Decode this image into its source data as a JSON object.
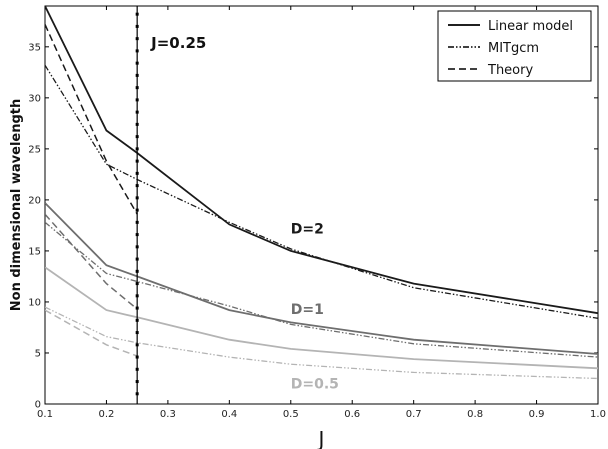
{
  "chart_data": {
    "type": "line",
    "xlabel": "J",
    "ylabel": "Non dimensional wavelength",
    "xlim": [
      0.1,
      1.0
    ],
    "ylim": [
      0,
      39
    ],
    "xticks": [
      "0.1",
      "0.2",
      "0.3",
      "0.4",
      "0.5",
      "0.6",
      "0.7",
      "0.8",
      "0.9",
      "1.0"
    ],
    "yticks": [
      "0",
      "5",
      "10",
      "15",
      "20",
      "25",
      "30",
      "35"
    ],
    "grid": false,
    "legend_position": "top-right",
    "legend": [
      {
        "label": "Linear model",
        "style": "solid"
      },
      {
        "label": "MITgcm",
        "style": "dashdotdot"
      },
      {
        "label": "Theory",
        "style": "dashed"
      }
    ],
    "vline": {
      "x": 0.25,
      "label": "J=0.25"
    },
    "groups": [
      {
        "name": "D=2",
        "color": "#1a1a1a",
        "label_pos": [
          0.5,
          17.2
        ],
        "linear": {
          "x": [
            0.1,
            0.2,
            0.25,
            0.4,
            0.5,
            0.7,
            1.0
          ],
          "y": [
            39.0,
            26.8,
            24.6,
            17.6,
            15.0,
            11.8,
            8.9
          ]
        },
        "mitgcm": {
          "x": [
            0.1,
            0.2,
            0.25,
            0.4,
            0.5,
            0.7,
            1.0
          ],
          "y": [
            33.2,
            23.5,
            22.0,
            17.8,
            15.2,
            11.4,
            8.4
          ]
        },
        "theory": {
          "x": [
            0.1,
            0.2,
            0.25
          ],
          "y": [
            37.2,
            23.8,
            18.6
          ]
        }
      },
      {
        "name": "D=1",
        "color": "#6e6e6e",
        "label_pos": [
          0.5,
          9.3
        ],
        "linear": {
          "x": [
            0.1,
            0.2,
            0.25,
            0.4,
            0.5,
            0.7,
            1.0
          ],
          "y": [
            19.7,
            13.6,
            12.5,
            9.2,
            8.0,
            6.3,
            4.9
          ]
        },
        "mitgcm": {
          "x": [
            0.1,
            0.2,
            0.25,
            0.4,
            0.5,
            0.7,
            1.0
          ],
          "y": [
            17.8,
            12.8,
            12.0,
            9.6,
            7.8,
            5.9,
            4.6
          ]
        },
        "theory": {
          "x": [
            0.1,
            0.2,
            0.25
          ],
          "y": [
            18.6,
            11.8,
            9.3
          ]
        }
      },
      {
        "name": "D=0.5",
        "color": "#b4b4b4",
        "label_pos": [
          0.5,
          2.0
        ],
        "linear": {
          "x": [
            0.1,
            0.2,
            0.25,
            0.4,
            0.5,
            0.7,
            1.0
          ],
          "y": [
            13.4,
            9.2,
            8.5,
            6.3,
            5.4,
            4.4,
            3.5
          ]
        },
        "mitgcm": {
          "x": [
            0.1,
            0.2,
            0.25,
            0.4,
            0.5,
            0.7,
            1.0
          ],
          "y": [
            9.5,
            6.6,
            6.0,
            4.6,
            3.9,
            3.1,
            2.5
          ]
        },
        "theory": {
          "x": [
            0.1,
            0.2,
            0.25
          ],
          "y": [
            9.2,
            5.8,
            4.7
          ]
        }
      }
    ]
  }
}
